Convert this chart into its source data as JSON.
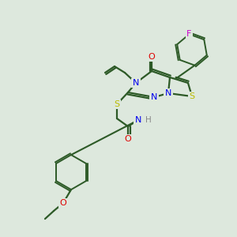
{
  "bg_color": "#dde8dd",
  "bond_color": "#2d5a27",
  "atom_colors": {
    "N": "#0000ee",
    "O": "#dd0000",
    "S": "#bbbb00",
    "F": "#cc00cc",
    "H": "#888888",
    "C": "#2d5a27"
  },
  "figsize": [
    3.0,
    3.0
  ],
  "dpi": 100
}
